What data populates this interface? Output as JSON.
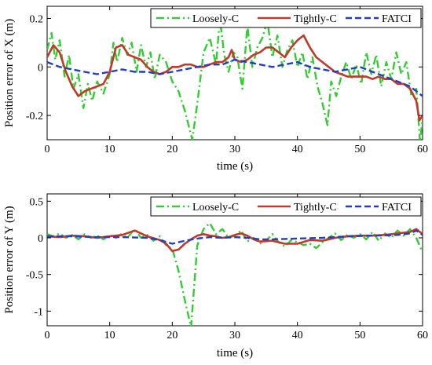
{
  "chart_data": [
    {
      "type": "line",
      "xlabel": "time (s)",
      "ylabel": "Position error of X (m)",
      "xlim": [
        0,
        60
      ],
      "ylim": [
        -0.3,
        0.25
      ],
      "xticks": [
        "0",
        "10",
        "20",
        "30",
        "40",
        "50",
        "60"
      ],
      "yticks": [
        "-0.2",
        "0",
        "0.2"
      ],
      "ytick_values": [
        -0.2,
        0,
        0.2
      ],
      "grid": false,
      "legend_position": "top-right",
      "series": [
        {
          "name": "Loosely-C",
          "color": "#33cc33",
          "dash": "dashdot",
          "x": [
            0,
            0.7,
            1.3,
            2,
            2.8,
            3.5,
            4.2,
            5,
            5.8,
            6.5,
            7.2,
            8,
            9,
            10,
            10.6,
            11.2,
            12,
            12.8,
            13.5,
            14.3,
            15,
            15.8,
            16.5,
            17.2,
            18,
            19,
            20,
            21,
            22,
            23.2,
            24,
            25,
            26,
            27,
            27.6,
            28.3,
            29,
            29.8,
            30.4,
            31.2,
            32,
            32.8,
            33.6,
            34.4,
            35.2,
            36,
            36.8,
            37.6,
            38.4,
            39.2,
            40,
            40.8,
            41.6,
            42.4,
            43.2,
            44,
            44.8,
            45.4,
            46.2,
            47,
            47.8,
            48.6,
            49.4,
            50.2,
            51,
            51.8,
            52.6,
            53.4,
            54.2,
            55,
            55.8,
            56.6,
            57.4,
            58.2,
            59,
            59.6,
            60
          ],
          "y": [
            0.07,
            0.14,
            0.03,
            0.11,
            -0.04,
            0.05,
            -0.09,
            -0.03,
            -0.17,
            -0.07,
            -0.14,
            -0.06,
            -0.11,
            -0.03,
            0.1,
            0.02,
            0.12,
            0.05,
            0.1,
            -0.02,
            0.09,
            0.0,
            0.06,
            -0.05,
            0.05,
            0.02,
            -0.06,
            -0.1,
            -0.18,
            -0.3,
            -0.15,
            0.06,
            0.12,
            0.01,
            0.2,
            0.05,
            -0.02,
            0.06,
            0.04,
            -0.09,
            0.17,
            0.0,
            0.08,
            0.12,
            0.19,
            0.04,
            0.13,
            0.0,
            0.07,
            0.11,
            0.0,
            0.06,
            -0.05,
            0.04,
            -0.08,
            -0.15,
            -0.24,
            -0.06,
            -0.12,
            -0.04,
            0.02,
            -0.05,
            0.01,
            -0.07,
            0.06,
            -0.03,
            0.05,
            -0.08,
            0.02,
            -0.05,
            0.06,
            -0.03,
            0.02,
            -0.12,
            -0.09,
            -0.31,
            -0.21
          ]
        },
        {
          "name": "Tightly-C",
          "color": "#c0392b",
          "dash": "solid",
          "x": [
            0,
            1,
            2,
            3,
            4,
            5,
            6,
            7,
            8,
            9,
            10,
            11,
            12,
            13,
            14,
            15,
            16,
            17,
            18,
            19,
            20,
            21,
            22,
            23,
            24,
            25,
            26,
            27,
            28,
            29,
            29.5,
            30,
            31,
            32,
            33,
            34,
            35,
            36,
            37,
            38,
            39,
            40,
            41,
            42,
            43,
            44,
            45,
            46,
            47,
            48,
            49,
            50,
            51,
            52,
            53,
            54,
            55,
            56,
            57,
            58,
            59,
            59.5,
            60
          ],
          "y": [
            0.04,
            0.09,
            0.06,
            -0.02,
            -0.08,
            -0.12,
            -0.1,
            -0.09,
            -0.08,
            -0.07,
            -0.02,
            0.08,
            0.09,
            0.05,
            0.04,
            0.03,
            0.0,
            -0.02,
            -0.03,
            -0.02,
            0.0,
            0.0,
            0.01,
            0.01,
            0.0,
            0.0,
            0.01,
            0.02,
            0.02,
            0.04,
            0.07,
            0.03,
            0.02,
            0.03,
            0.05,
            0.06,
            0.08,
            0.08,
            0.06,
            0.04,
            0.08,
            0.11,
            0.13,
            0.08,
            0.04,
            0.02,
            0.0,
            -0.02,
            -0.03,
            -0.04,
            -0.04,
            -0.04,
            -0.04,
            -0.05,
            -0.04,
            -0.05,
            -0.05,
            -0.07,
            -0.07,
            -0.09,
            -0.14,
            -0.22,
            -0.2
          ]
        },
        {
          "name": "FATCI",
          "color": "#1f3fbf",
          "dash": "dashed",
          "x": [
            0,
            2,
            4,
            6,
            8,
            10,
            12,
            14,
            16,
            18,
            20,
            22,
            24,
            26,
            28,
            30,
            32,
            34,
            36,
            38,
            40,
            42,
            44,
            46,
            48,
            50,
            52,
            54,
            56,
            58,
            60
          ],
          "y": [
            0.02,
            0.0,
            -0.01,
            -0.02,
            -0.03,
            -0.02,
            -0.01,
            -0.02,
            -0.02,
            -0.03,
            -0.02,
            -0.01,
            0.0,
            0.01,
            0.01,
            0.03,
            0.02,
            0.01,
            0.0,
            0.01,
            0.02,
            0.0,
            -0.01,
            -0.02,
            -0.01,
            0.0,
            -0.02,
            -0.04,
            -0.06,
            -0.08,
            -0.12
          ]
        }
      ]
    },
    {
      "type": "line",
      "xlabel": "time (s)",
      "ylabel": "Position error of Y (m)",
      "xlim": [
        0,
        60
      ],
      "ylim": [
        -1.2,
        0.6
      ],
      "xticks": [
        "0",
        "10",
        "20",
        "30",
        "40",
        "50",
        "60"
      ],
      "yticks": [
        "-1",
        "-0.5",
        "0",
        "0.5"
      ],
      "ytick_values": [
        -1,
        -0.5,
        0,
        0.5
      ],
      "grid": false,
      "legend_position": "top-right",
      "series": [
        {
          "name": "Loosely-C",
          "color": "#33cc33",
          "dash": "dashdot",
          "x": [
            0,
            1,
            2,
            3,
            4,
            5,
            6,
            7,
            8,
            9,
            10,
            11,
            12,
            13,
            14,
            15,
            16,
            17,
            18,
            19,
            20,
            21,
            22,
            23,
            24,
            25,
            26,
            27,
            28,
            29,
            30,
            31,
            32,
            33,
            34,
            35,
            36,
            37,
            38,
            39,
            40,
            41,
            42,
            43,
            44,
            45,
            46,
            47,
            48,
            49,
            50,
            51,
            52,
            53,
            54,
            55,
            56,
            57,
            58,
            59,
            60
          ],
          "y": [
            0.05,
            0.02,
            0.06,
            0.0,
            0.04,
            -0.02,
            0.05,
            0.0,
            0.03,
            -0.02,
            0.04,
            0.0,
            0.06,
            0.02,
            0.12,
            0.0,
            0.04,
            -0.04,
            0.02,
            -0.1,
            -0.15,
            -0.45,
            -0.85,
            -1.22,
            -0.1,
            0.12,
            0.2,
            0.05,
            0.12,
            0.0,
            0.03,
            0.1,
            -0.05,
            0.0,
            -0.08,
            -0.04,
            0.05,
            -0.06,
            -0.12,
            -0.03,
            -0.06,
            -0.1,
            -0.08,
            -0.14,
            -0.06,
            0.0,
            0.06,
            -0.03,
            0.04,
            0.0,
            0.05,
            -0.02,
            0.08,
            -0.04,
            0.06,
            0.0,
            0.1,
            0.03,
            0.12,
            0.0,
            -0.2
          ]
        },
        {
          "name": "Tightly-C",
          "color": "#c0392b",
          "dash": "solid",
          "x": [
            0,
            2,
            4,
            6,
            8,
            10,
            12,
            14,
            16,
            18,
            19,
            20,
            21,
            22,
            23,
            24,
            25,
            26,
            27,
            28,
            29,
            30,
            31,
            32,
            33,
            34,
            36,
            38,
            40,
            42,
            44,
            46,
            48,
            50,
            52,
            54,
            56,
            58,
            59,
            60
          ],
          "y": [
            0.02,
            0.01,
            0.03,
            0.02,
            0.0,
            0.02,
            0.04,
            0.1,
            0.02,
            -0.03,
            -0.08,
            -0.18,
            -0.16,
            -0.08,
            -0.02,
            0.03,
            0.05,
            0.03,
            0.02,
            0.0,
            0.01,
            0.04,
            0.06,
            0.03,
            -0.02,
            -0.05,
            -0.04,
            -0.08,
            -0.08,
            -0.03,
            -0.04,
            0.0,
            0.02,
            0.03,
            0.03,
            0.04,
            0.06,
            0.08,
            0.12,
            0.05
          ]
        },
        {
          "name": "FATCI",
          "color": "#1f3fbf",
          "dash": "dashed",
          "x": [
            0,
            4,
            8,
            12,
            16,
            18,
            20,
            22,
            24,
            26,
            28,
            30,
            32,
            34,
            36,
            40,
            44,
            48,
            52,
            56,
            58,
            59,
            60
          ],
          "y": [
            0.02,
            0.02,
            0.01,
            0.01,
            0.0,
            -0.03,
            -0.08,
            -0.04,
            -0.01,
            0.01,
            0.0,
            0.01,
            0.0,
            -0.02,
            -0.02,
            -0.01,
            0.0,
            0.02,
            0.03,
            0.04,
            0.06,
            0.1,
            0.04
          ]
        }
      ]
    }
  ]
}
